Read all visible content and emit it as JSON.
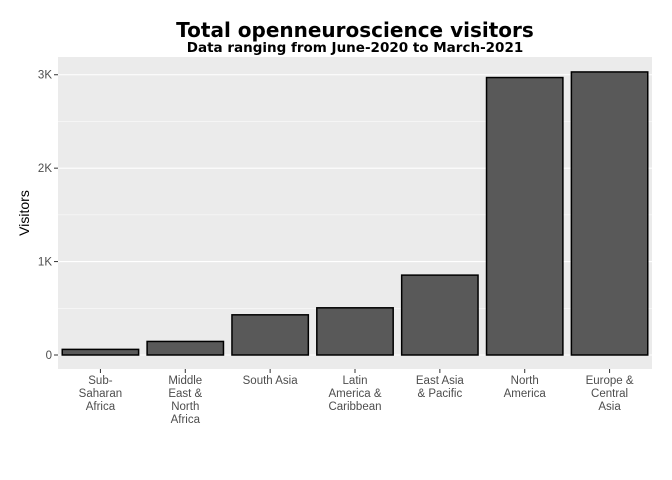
{
  "chart_data": {
    "type": "bar",
    "title": "Total openneuroscience visitors",
    "subtitle": "Data ranging from June-2020 to March-2021",
    "xlabel": "",
    "ylabel": "Visitors",
    "categories": [
      [
        "Sub-",
        "Saharan",
        "Africa"
      ],
      [
        "Middle",
        "East &",
        "North",
        "Africa"
      ],
      [
        "South Asia"
      ],
      [
        "Latin",
        "America &",
        "Caribbean"
      ],
      [
        "East Asia",
        "& Pacific"
      ],
      [
        "North",
        "America"
      ],
      [
        "Europe &",
        "Central",
        "Asia"
      ]
    ],
    "values": [
      60,
      145,
      430,
      505,
      855,
      2970,
      3030
    ],
    "yticks": [
      {
        "value": 0,
        "label": "0"
      },
      {
        "value": 1000,
        "label": "1K"
      },
      {
        "value": 2000,
        "label": "2K"
      },
      {
        "value": 3000,
        "label": "3K"
      }
    ],
    "ylim": [
      -150,
      3190
    ],
    "grid": true,
    "colors": {
      "panel": "#ebebeb",
      "bar": "#595959",
      "bar_outline": "#000000",
      "grid": "#ffffff"
    }
  }
}
